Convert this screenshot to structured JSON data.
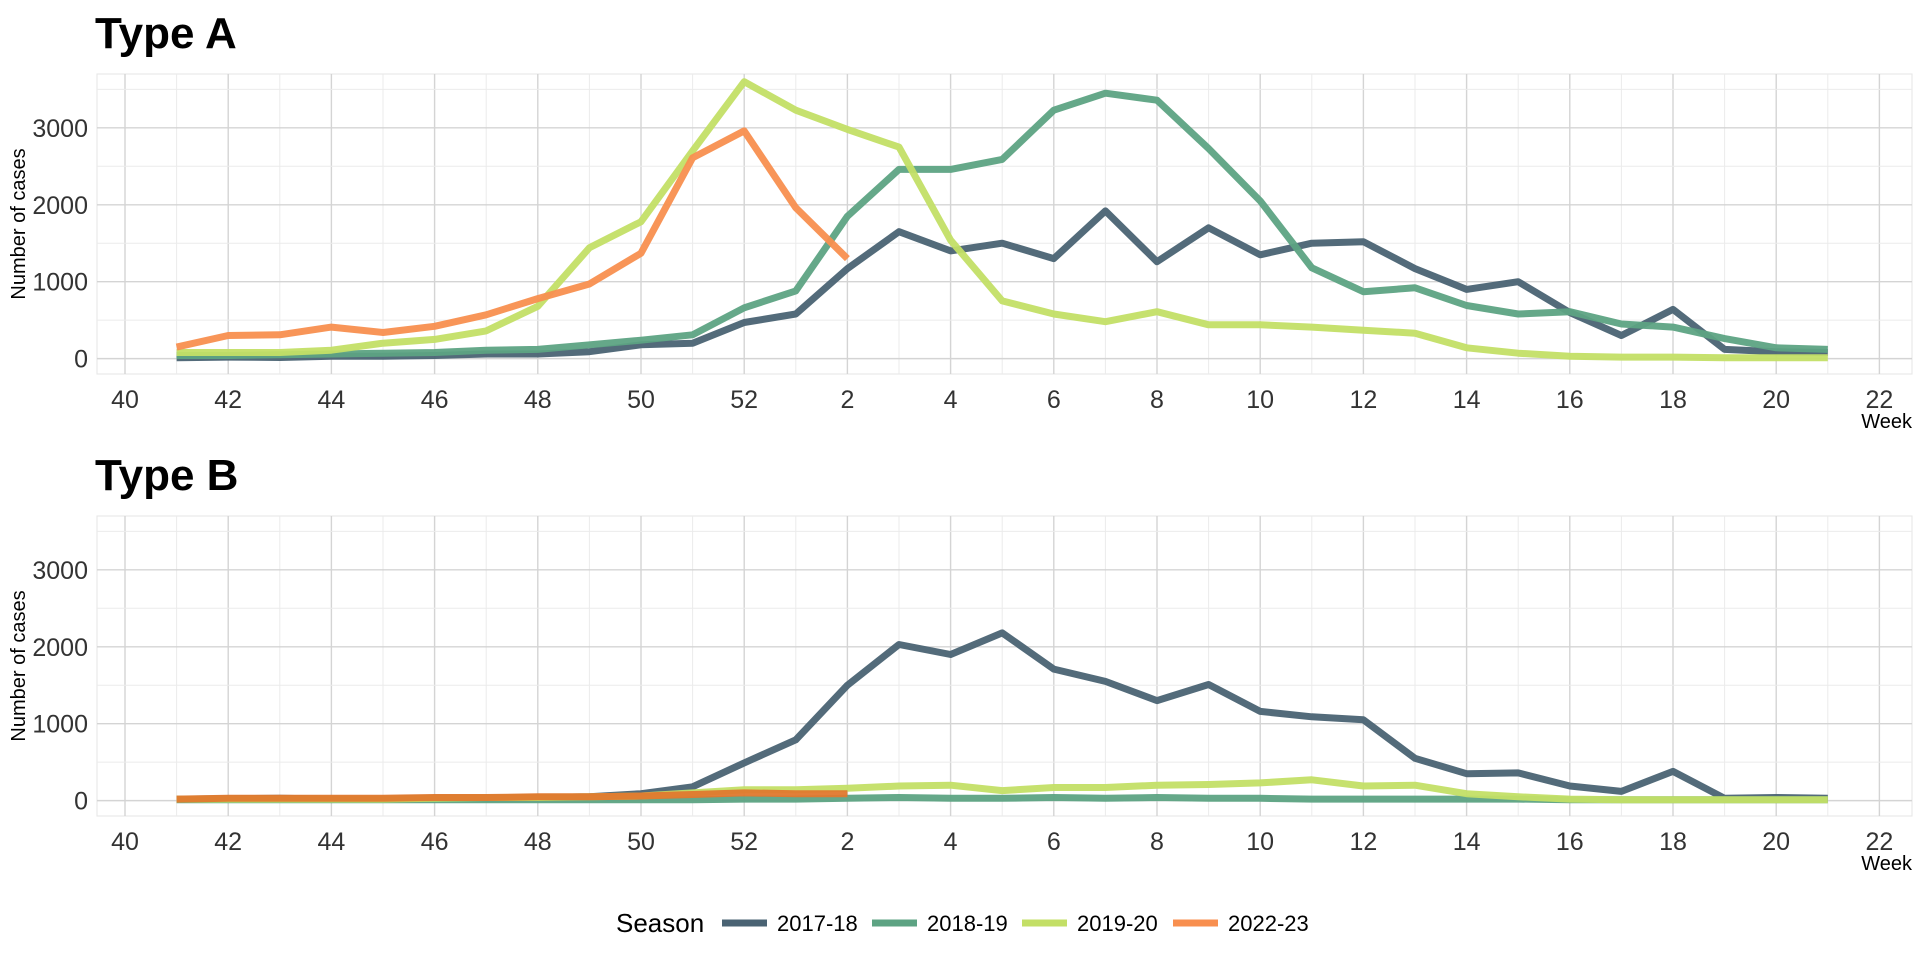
{
  "chart_data": [
    {
      "type": "line",
      "title": "Type A",
      "xlabel": "Week",
      "ylabel": "Number of cases",
      "x_ticks": [
        "40",
        "42",
        "44",
        "46",
        "48",
        "50",
        "52",
        "2",
        "4",
        "6",
        "8",
        "10",
        "12",
        "14",
        "16",
        "18",
        "20",
        "22"
      ],
      "y_ticks": [
        "0",
        "1000",
        "2000",
        "3000"
      ],
      "ylim": [
        -200,
        3700
      ],
      "grid": true,
      "weeks": [
        "41",
        "42",
        "43",
        "44",
        "45",
        "46",
        "47",
        "48",
        "49",
        "50",
        "51",
        "52",
        "1",
        "2",
        "3",
        "4",
        "5",
        "6",
        "7",
        "8",
        "9",
        "10",
        "11",
        "12",
        "13",
        "14",
        "15",
        "16",
        "17",
        "18",
        "19",
        "20",
        "21"
      ],
      "series": [
        {
          "name": "2017-18",
          "color": "#4a6373",
          "values": [
            10,
            20,
            15,
            30,
            30,
            40,
            60,
            60,
            90,
            180,
            200,
            470,
            580,
            1170,
            1650,
            1400,
            1500,
            1300,
            1920,
            1260,
            1700,
            1350,
            1500,
            1520,
            1170,
            900,
            1000,
            600,
            300,
            640,
            120,
            90,
            80
          ]
        },
        {
          "name": "2018-19",
          "color": "#5da383",
          "values": [
            40,
            40,
            50,
            60,
            70,
            80,
            110,
            120,
            180,
            240,
            310,
            660,
            880,
            1850,
            2460,
            2460,
            2590,
            3230,
            3450,
            3360,
            2730,
            2050,
            1180,
            870,
            920,
            690,
            580,
            610,
            450,
            410,
            260,
            140,
            120
          ]
        },
        {
          "name": "2019-20",
          "color": "#c3df66",
          "values": [
            80,
            80,
            80,
            110,
            200,
            250,
            360,
            680,
            1440,
            1780,
            2700,
            3600,
            3230,
            2980,
            2750,
            1540,
            750,
            580,
            480,
            610,
            440,
            440,
            410,
            370,
            330,
            140,
            70,
            30,
            20,
            20,
            10,
            10,
            10
          ]
        },
        {
          "name": "2022-23",
          "color": "#f88f4f",
          "values": [
            150,
            300,
            310,
            410,
            340,
            420,
            570,
            780,
            970,
            1370,
            2610,
            2960,
            1960,
            1300
          ]
        }
      ]
    },
    {
      "type": "line",
      "title": "Type B",
      "xlabel": "Week",
      "ylabel": "Number of cases",
      "x_ticks": [
        "40",
        "42",
        "44",
        "46",
        "48",
        "50",
        "52",
        "2",
        "4",
        "6",
        "8",
        "10",
        "12",
        "14",
        "16",
        "18",
        "20",
        "22"
      ],
      "y_ticks": [
        "0",
        "1000",
        "2000",
        "3000"
      ],
      "ylim": [
        -200,
        3700
      ],
      "grid": true,
      "weeks": [
        "41",
        "42",
        "43",
        "44",
        "45",
        "46",
        "47",
        "48",
        "49",
        "50",
        "51",
        "52",
        "1",
        "2",
        "3",
        "4",
        "5",
        "6",
        "7",
        "8",
        "9",
        "10",
        "11",
        "12",
        "13",
        "14",
        "15",
        "16",
        "17",
        "18",
        "19",
        "20",
        "21"
      ],
      "series": [
        {
          "name": "2017-18",
          "color": "#4a6373",
          "values": [
            20,
            25,
            30,
            20,
            20,
            30,
            35,
            40,
            50,
            90,
            180,
            490,
            790,
            1500,
            2030,
            1900,
            2180,
            1710,
            1550,
            1300,
            1510,
            1160,
            1090,
            1050,
            550,
            350,
            360,
            190,
            120,
            380,
            30,
            40,
            30
          ]
        },
        {
          "name": "2018-19",
          "color": "#5da383",
          "values": [
            10,
            10,
            10,
            10,
            10,
            10,
            10,
            10,
            10,
            10,
            10,
            20,
            20,
            30,
            40,
            30,
            30,
            40,
            30,
            40,
            30,
            30,
            20,
            20,
            20,
            20,
            20,
            10,
            10,
            10,
            10,
            10,
            10
          ]
        },
        {
          "name": "2019-20",
          "color": "#c3df66",
          "values": [
            20,
            20,
            20,
            20,
            20,
            30,
            40,
            40,
            50,
            60,
            100,
            140,
            140,
            160,
            190,
            200,
            130,
            170,
            170,
            200,
            210,
            230,
            270,
            190,
            200,
            90,
            50,
            20,
            10,
            10,
            10,
            10,
            10
          ]
        },
        {
          "name": "2022-23",
          "color": "#e0782e",
          "values": [
            20,
            30,
            30,
            30,
            30,
            40,
            40,
            50,
            50,
            60,
            80,
            100,
            90,
            90
          ]
        }
      ]
    }
  ],
  "legend": {
    "title": "Season",
    "items": [
      {
        "label": "2017-18",
        "color": "#4a6373"
      },
      {
        "label": "2018-19",
        "color": "#5da383"
      },
      {
        "label": "2019-20",
        "color": "#c3df66"
      },
      {
        "label": "2022-23",
        "color": "#f88f4f"
      }
    ]
  }
}
